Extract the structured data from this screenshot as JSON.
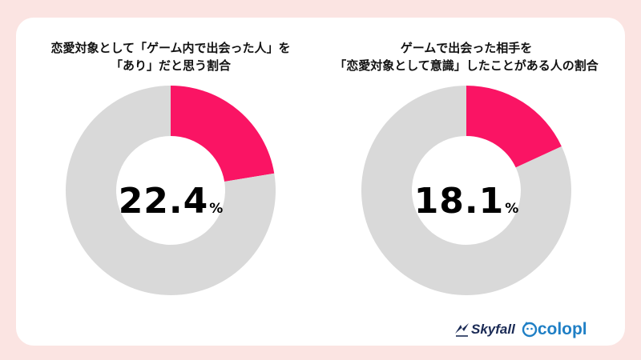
{
  "chart_data": [
    {
      "type": "pie",
      "title_lines": [
        "恋愛対象として「ゲーム内で出会った人」を",
        "「あり」だと思う割合"
      ],
      "center_value": "22.4",
      "center_unit": "%",
      "slices": [
        {
          "value": 22.4,
          "color": "#fa1464"
        },
        {
          "value": 77.6,
          "color": "#d9d9d9"
        }
      ]
    },
    {
      "type": "pie",
      "title_lines": [
        "ゲームで出会った相手を",
        "「恋愛対象として意識」したことがある人の割合"
      ],
      "center_value": "18.1",
      "center_unit": "%",
      "slices": [
        {
          "value": 18.1,
          "color": "#fa1464"
        },
        {
          "value": 81.9,
          "color": "#d9d9d9"
        }
      ]
    }
  ],
  "logos": {
    "skyfall": "Skyfall",
    "colopl": "colopl",
    "skyfall_icon": "skyfall-bird-icon",
    "colopl_icon": "colopl-mascot-icon"
  }
}
